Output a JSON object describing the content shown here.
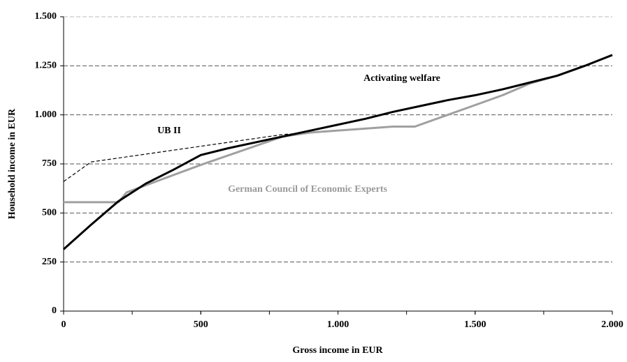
{
  "chart_data": {
    "type": "line",
    "xlabel": "Gross income in EUR",
    "ylabel": "Household income in EUR",
    "xlim": [
      0,
      2000
    ],
    "xticks": [
      0,
      500,
      {
        "value": 1000,
        "label": "1.000"
      },
      {
        "value": 1500,
        "label": "1.500"
      },
      {
        "value": 2000,
        "label": "2.000"
      }
    ],
    "ylim": [
      0,
      1500
    ],
    "yticks": [
      0,
      250,
      500,
      750,
      {
        "value": 1000,
        "label": "1.000"
      },
      {
        "value": 1250,
        "label": "1.250"
      },
      {
        "value": 1500,
        "label": "1.500"
      }
    ],
    "grid": true,
    "annotations": [
      "Activating welfare",
      "UB II",
      "German Council of Economic Experts"
    ],
    "series": [
      {
        "name": "UB II",
        "color": "#000000",
        "style": "dashed",
        "x": [
          0,
          100,
          200,
          500,
          800,
          900,
          1000,
          1100,
          1200,
          1280,
          1400,
          1500,
          1600,
          1700,
          1800,
          1900,
          2000
        ],
        "values": [
          660,
          760,
          780,
          840,
          900,
          910,
          920,
          930,
          940,
          940,
          1000,
          1050,
          1100,
          1160,
          1200,
          1250,
          1305
        ]
      },
      {
        "name": "German Council of Economic Experts",
        "color": "#a0a0a0",
        "style": "solid",
        "x": [
          0,
          200,
          230,
          500,
          800,
          900,
          1000,
          1100,
          1200,
          1280,
          1400,
          1500,
          1600,
          1700,
          1800,
          1900,
          2000
        ],
        "values": [
          555,
          555,
          605,
          745,
          890,
          910,
          920,
          930,
          940,
          940,
          1000,
          1050,
          1100,
          1160,
          1200,
          1250,
          1305
        ]
      },
      {
        "name": "Activating welfare",
        "color": "#000000",
        "style": "solid",
        "x": [
          0,
          100,
          200,
          300,
          400,
          500,
          600,
          700,
          800,
          900,
          1000,
          1100,
          1200,
          1300,
          1400,
          1500,
          1600,
          1700,
          1800,
          1900,
          2000
        ],
        "values": [
          315,
          440,
          560,
          650,
          720,
          795,
          830,
          860,
          890,
          920,
          950,
          980,
          1015,
          1045,
          1075,
          1100,
          1130,
          1165,
          1200,
          1250,
          1305
        ]
      }
    ]
  }
}
